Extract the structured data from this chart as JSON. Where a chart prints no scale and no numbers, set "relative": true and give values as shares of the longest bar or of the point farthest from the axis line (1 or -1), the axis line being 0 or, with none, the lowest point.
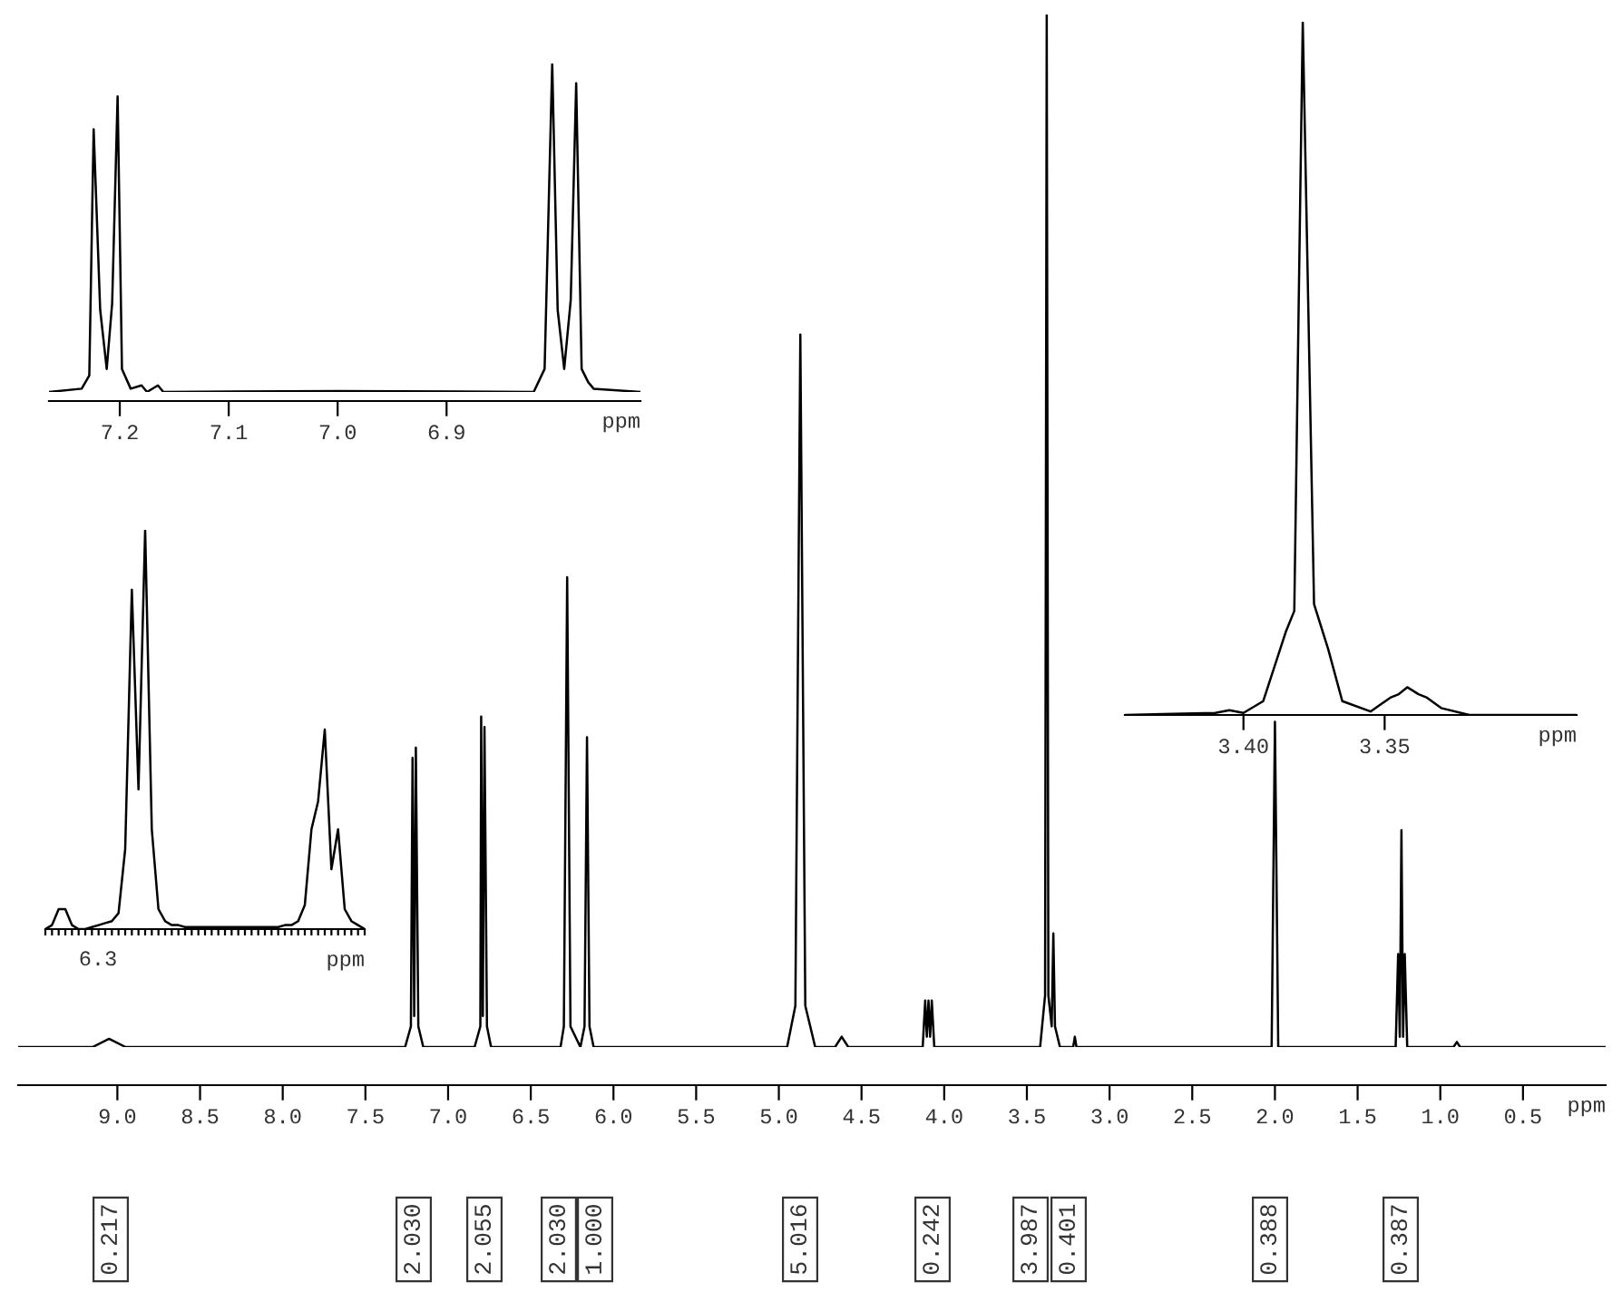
{
  "chart_data": [
    {
      "type": "line",
      "relative": true,
      "xlabel": "ppm",
      "xlim": [
        9.6,
        0.0
      ],
      "xticks": [
        {
          "value": 9.0,
          "label": "9.0"
        },
        {
          "value": 8.5,
          "label": "8.5"
        },
        {
          "value": 8.0,
          "label": "8.0"
        },
        {
          "value": 7.5,
          "label": "7.5"
        },
        {
          "value": 7.0,
          "label": "7.0"
        },
        {
          "value": 6.5,
          "label": "6.5"
        },
        {
          "value": 6.0,
          "label": "6.0"
        },
        {
          "value": 5.5,
          "label": "5.5"
        },
        {
          "value": 5.0,
          "label": "5.0"
        },
        {
          "value": 4.5,
          "label": "4.5"
        },
        {
          "value": 4.0,
          "label": "4.0"
        },
        {
          "value": 3.5,
          "label": "3.5"
        },
        {
          "value": 3.0,
          "label": "3.0"
        },
        {
          "value": 2.5,
          "label": "2.5"
        },
        {
          "value": 2.0,
          "label": "2.0"
        },
        {
          "value": 1.5,
          "label": "1.5"
        },
        {
          "value": 1.0,
          "label": "1.0"
        },
        {
          "value": 0.5,
          "label": "0.5"
        }
      ],
      "tick_labels": "x",
      "grid": false,
      "legend": false,
      "series": [
        {
          "color": "#000000",
          "x": [
            9.6,
            9.15,
            9.05,
            8.95,
            7.26,
            7.225,
            7.215,
            7.205,
            7.195,
            7.18,
            7.15,
            6.84,
            6.805,
            6.8,
            6.79,
            6.78,
            6.765,
            6.74,
            6.32,
            6.3,
            6.28,
            6.26,
            6.2,
            6.175,
            6.16,
            6.145,
            6.12,
            4.95,
            4.9,
            4.87,
            4.84,
            4.78,
            4.66,
            4.62,
            4.58,
            4.13,
            4.115,
            4.105,
            4.095,
            4.085,
            4.075,
            4.06,
            3.42,
            3.39,
            3.38,
            3.37,
            3.35,
            3.34,
            3.33,
            3.3,
            3.22,
            3.21,
            3.2,
            2.02,
            2.0,
            1.98,
            1.27,
            1.255,
            1.245,
            1.235,
            1.225,
            1.215,
            1.2,
            0.92,
            0.9,
            0.88,
            0.0
          ],
          "values": [
            0,
            0,
            0.008,
            0,
            0,
            0.02,
            0.28,
            0.03,
            0.29,
            0.02,
            0,
            0,
            0.02,
            0.32,
            0.03,
            0.31,
            0.02,
            0,
            0,
            0.02,
            0.455,
            0.02,
            0,
            0.02,
            0.3,
            0.02,
            0,
            0,
            0.04,
            0.69,
            0.04,
            0,
            0,
            0.01,
            0,
            0,
            0.045,
            0.01,
            0.045,
            0.01,
            0.045,
            0,
            0,
            0.05,
            1.0,
            0.05,
            0.02,
            0.11,
            0.02,
            0,
            0,
            0.01,
            0,
            0,
            0.315,
            0,
            0,
            0.09,
            0.01,
            0.21,
            0.01,
            0.09,
            0,
            0,
            0.005,
            0,
            0
          ]
        }
      ],
      "annotations": [
        "0.217",
        "2.030",
        "2.055",
        "2.030",
        "1.000",
        "5.016",
        "0.242",
        "3.987",
        "0.401",
        "0.388",
        "0.387"
      ]
    },
    {
      "type": "line",
      "relative": true,
      "xlabel": "ppm",
      "xlim": [
        7.265,
        6.722
      ],
      "xticks": [
        {
          "value": 7.2,
          "label": "7.2"
        },
        {
          "value": 7.1,
          "label": "7.1"
        },
        {
          "value": 7.0,
          "label": "7.0"
        },
        {
          "value": 6.9,
          "label": "6.9"
        }
      ],
      "tick_labels": "x",
      "grid": false,
      "legend": false,
      "series": [
        {
          "color": "#000000",
          "x": [
            7.265,
            7.235,
            7.228,
            7.224,
            7.218,
            7.212,
            7.207,
            7.202,
            7.198,
            7.19,
            7.18,
            7.175,
            7.165,
            7.16,
            7.0,
            6.82,
            6.81,
            6.803,
            6.798,
            6.792,
            6.786,
            6.781,
            6.776,
            6.77,
            6.765,
            6.722
          ],
          "values": [
            0,
            0.01,
            0.05,
            0.8,
            0.25,
            0.07,
            0.27,
            0.9,
            0.07,
            0.01,
            0.02,
            0,
            0.02,
            0,
            0.003,
            0,
            0.07,
            1.0,
            0.25,
            0.07,
            0.28,
            0.94,
            0.07,
            0.03,
            0.01,
            0
          ]
        }
      ]
    },
    {
      "type": "line",
      "relative": true,
      "xlabel": "ppm",
      "annotations": [
        "6.3"
      ],
      "grid": false,
      "legend": false,
      "categories": [
        null,
        null,
        null,
        null,
        null,
        null,
        null,
        null,
        null,
        null,
        null,
        null,
        null,
        null,
        null,
        null,
        null,
        null,
        null,
        null,
        null,
        null,
        null,
        null,
        null,
        null,
        null,
        null,
        null,
        null,
        null,
        null,
        null,
        null,
        null,
        null,
        null,
        null,
        null,
        null,
        null,
        null,
        null,
        null,
        null,
        null,
        null,
        null,
        null
      ],
      "series": [
        {
          "color": "#000000",
          "values": [
            0,
            0.01,
            0.05,
            0.05,
            0.01,
            0,
            0,
            0.005,
            0.01,
            0.015,
            0.02,
            0.04,
            0.2,
            0.85,
            0.35,
            1.0,
            0.25,
            0.05,
            0.02,
            0.01,
            0.01,
            0.005,
            0.005,
            0.005,
            0.005,
            0.005,
            0.005,
            0.005,
            0.005,
            0.005,
            0.005,
            0.005,
            0.005,
            0.005,
            0.005,
            0.005,
            0.01,
            0.01,
            0.02,
            0.06,
            0.25,
            0.32,
            0.5,
            0.15,
            0.25,
            0.05,
            0.02,
            0.01,
            0
          ]
        }
      ]
    },
    {
      "type": "line",
      "relative": true,
      "xlabel": "ppm",
      "xlim": [
        3.442,
        3.282
      ],
      "xticks": [
        {
          "value": 3.4,
          "label": "3.40"
        },
        {
          "value": 3.35,
          "label": "3.35"
        }
      ],
      "tick_labels": "x",
      "grid": false,
      "legend": false,
      "series": [
        {
          "color": "#000000",
          "x": [
            3.442,
            3.41,
            3.405,
            3.4,
            3.393,
            3.385,
            3.382,
            3.379,
            3.375,
            3.37,
            3.365,
            3.355,
            3.348,
            3.345,
            3.342,
            3.338,
            3.335,
            3.33,
            3.32,
            3.282
          ],
          "values": [
            0,
            0.003,
            0.007,
            0.003,
            0.02,
            0.12,
            0.15,
            1.0,
            0.16,
            0.095,
            0.02,
            0.005,
            0.025,
            0.03,
            0.04,
            0.03,
            0.025,
            0.01,
            0,
            0
          ]
        }
      ]
    }
  ]
}
